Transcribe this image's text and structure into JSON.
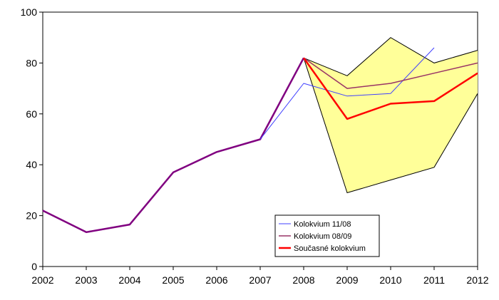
{
  "chart_data": {
    "type": "line",
    "x": [
      2002,
      2003,
      2004,
      2005,
      2006,
      2007,
      2008,
      2009,
      2010,
      2011,
      2012
    ],
    "xticks": [
      "2002",
      "2003",
      "2004",
      "2005",
      "2006",
      "2007",
      "2008",
      "2009",
      "2010",
      "2011",
      "2012"
    ],
    "ylim": [
      0,
      100
    ],
    "yticks": [
      "0",
      "20",
      "40",
      "60",
      "80",
      "100"
    ],
    "ytick_values": [
      0,
      20,
      40,
      60,
      80,
      100
    ],
    "grid": false,
    "legend_position": "bottom-center",
    "band": {
      "fill": "#ffff99",
      "stroke": "#000000",
      "upper": [
        {
          "x": 2008,
          "y": 82
        },
        {
          "x": 2009,
          "y": 75
        },
        {
          "x": 2010,
          "y": 90
        },
        {
          "x": 2011,
          "y": 80
        },
        {
          "x": 2012,
          "y": 85
        }
      ],
      "lower": [
        {
          "x": 2008,
          "y": 82
        },
        {
          "x": 2009,
          "y": 29
        },
        {
          "x": 2010,
          "y": 34
        },
        {
          "x": 2011,
          "y": 39
        },
        {
          "x": 2012,
          "y": 68
        }
      ]
    },
    "history": {
      "color": "#800080",
      "points": [
        {
          "x": 2002,
          "y": 22
        },
        {
          "x": 2003,
          "y": 13.5
        },
        {
          "x": 2004,
          "y": 16.5
        },
        {
          "x": 2005,
          "y": 37
        },
        {
          "x": 2006,
          "y": 45
        },
        {
          "x": 2007,
          "y": 50
        },
        {
          "x": 2008,
          "y": 82
        }
      ]
    },
    "series": [
      {
        "name": "Kolokvium 11/08",
        "color": "#4040ff",
        "width": 1,
        "points": [
          {
            "x": 2007,
            "y": 50
          },
          {
            "x": 2008,
            "y": 72
          },
          {
            "x": 2009,
            "y": 67
          },
          {
            "x": 2010,
            "y": 68
          },
          {
            "x": 2011,
            "y": 86
          }
        ]
      },
      {
        "name": "Kolokvium 08/09",
        "color": "#993366",
        "width": 1.5,
        "points": [
          {
            "x": 2008,
            "y": 82
          },
          {
            "x": 2009,
            "y": 70
          },
          {
            "x": 2010,
            "y": 72
          },
          {
            "x": 2011,
            "y": 76
          },
          {
            "x": 2012,
            "y": 80
          }
        ]
      },
      {
        "name": "Současné kolokvium",
        "color": "#ff0000",
        "width": 2.5,
        "points": [
          {
            "x": 2008,
            "y": 82
          },
          {
            "x": 2009,
            "y": 58
          },
          {
            "x": 2010,
            "y": 64
          },
          {
            "x": 2011,
            "y": 65
          },
          {
            "x": 2012,
            "y": 76
          }
        ]
      }
    ]
  }
}
